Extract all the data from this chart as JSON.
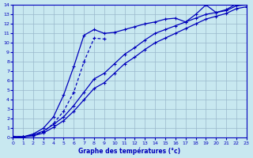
{
  "xlabel": "Graphe des températures (°c)",
  "background_color": "#c8e8f0",
  "grid_color": "#9ab8cc",
  "line_color": "#0000bb",
  "xlim": [
    0,
    23
  ],
  "ylim": [
    0,
    14
  ],
  "xticks": [
    0,
    1,
    2,
    3,
    4,
    5,
    6,
    7,
    8,
    9,
    10,
    11,
    12,
    13,
    14,
    15,
    16,
    17,
    18,
    19,
    20,
    21,
    22,
    23
  ],
  "yticks": [
    0,
    1,
    2,
    3,
    4,
    5,
    6,
    7,
    8,
    9,
    10,
    11,
    12,
    13,
    14
  ],
  "curve_top_x": [
    0,
    1,
    2,
    3,
    4,
    5,
    6,
    7,
    8,
    9,
    10,
    11,
    12,
    13,
    14,
    15,
    16,
    17,
    18,
    19,
    20,
    21,
    22,
    23
  ],
  "curve_top_y": [
    0.1,
    0.1,
    0.4,
    1.0,
    2.2,
    4.5,
    7.5,
    10.8,
    11.4,
    11.0,
    11.1,
    11.4,
    11.7,
    12.0,
    12.2,
    12.5,
    12.6,
    12.2,
    13.0,
    14.0,
    13.2,
    13.5,
    14.1,
    14.1
  ],
  "curve_loop_x": [
    0,
    1,
    2,
    3,
    4,
    5,
    6,
    7,
    8,
    9
  ],
  "curve_loop_y": [
    0.1,
    0.1,
    0.3,
    0.6,
    1.5,
    2.8,
    4.8,
    8.0,
    10.5,
    10.4
  ],
  "curve_mid_x": [
    0,
    1,
    2,
    3,
    4,
    5,
    6,
    7,
    8,
    9,
    10,
    11,
    12,
    13,
    14,
    15,
    16,
    17,
    18,
    19,
    20,
    21,
    22,
    23
  ],
  "curve_mid_y": [
    0.1,
    0.1,
    0.3,
    0.7,
    1.4,
    2.2,
    3.4,
    4.8,
    6.2,
    6.8,
    7.8,
    8.8,
    9.5,
    10.3,
    11.0,
    11.4,
    11.8,
    12.2,
    12.6,
    13.0,
    13.2,
    13.4,
    13.9,
    14.0
  ],
  "curve_low_x": [
    0,
    1,
    2,
    3,
    4,
    5,
    6,
    7,
    8,
    9,
    10,
    11,
    12,
    13,
    14,
    15,
    16,
    17,
    18,
    19,
    20,
    21,
    22,
    23
  ],
  "curve_low_y": [
    0.1,
    0.1,
    0.2,
    0.5,
    1.1,
    1.8,
    2.8,
    4.0,
    5.2,
    5.8,
    6.8,
    7.8,
    8.5,
    9.3,
    10.0,
    10.5,
    11.0,
    11.5,
    12.0,
    12.5,
    12.8,
    13.1,
    13.6,
    13.8
  ],
  "marker_size": 2.5,
  "line_width": 0.9
}
